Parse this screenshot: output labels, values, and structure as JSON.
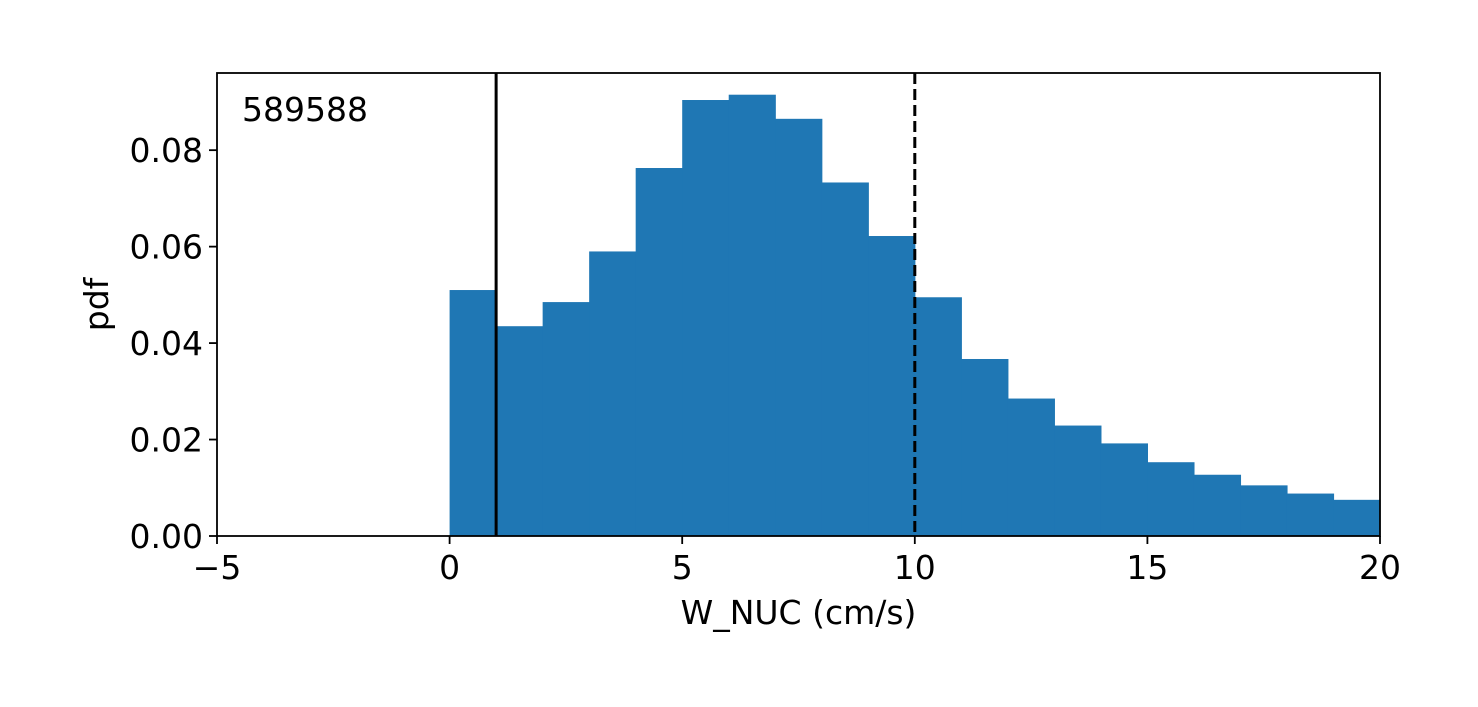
{
  "chart_data": {
    "type": "bar",
    "title": "",
    "xlabel": "W_NUC (cm/s)",
    "ylabel": "pdf",
    "xlim": [
      -5,
      20
    ],
    "ylim": [
      0,
      0.096
    ],
    "grid": false,
    "annotation": "589588",
    "bar_color": "#1f77b4",
    "bin_edges": [
      0,
      1,
      2,
      3,
      4,
      5,
      6,
      7,
      8,
      9,
      10,
      11,
      12,
      13,
      14,
      15,
      16,
      17,
      18,
      19,
      20
    ],
    "values": [
      0.051,
      0.0435,
      0.0485,
      0.059,
      0.0763,
      0.0904,
      0.0915,
      0.0865,
      0.0733,
      0.0622,
      0.0495,
      0.0367,
      0.0285,
      0.0229,
      0.0192,
      0.0153,
      0.0127,
      0.0105,
      0.0088,
      0.0075
    ],
    "vlines": [
      {
        "x": 1,
        "style": "solid"
      },
      {
        "x": 10,
        "style": "dashed"
      }
    ],
    "x_ticks": [
      {
        "value": -5,
        "label": "−5"
      },
      {
        "value": 0,
        "label": "0"
      },
      {
        "value": 5,
        "label": "5"
      },
      {
        "value": 10,
        "label": "10"
      },
      {
        "value": 15,
        "label": "15"
      },
      {
        "value": 20,
        "label": "20"
      }
    ],
    "y_ticks": [
      {
        "value": 0,
        "label": "0.00"
      },
      {
        "value": 0.02,
        "label": "0.02"
      },
      {
        "value": 0.04,
        "label": "0.04"
      },
      {
        "value": 0.06,
        "label": "0.06"
      },
      {
        "value": 0.08,
        "label": "0.08"
      }
    ]
  }
}
